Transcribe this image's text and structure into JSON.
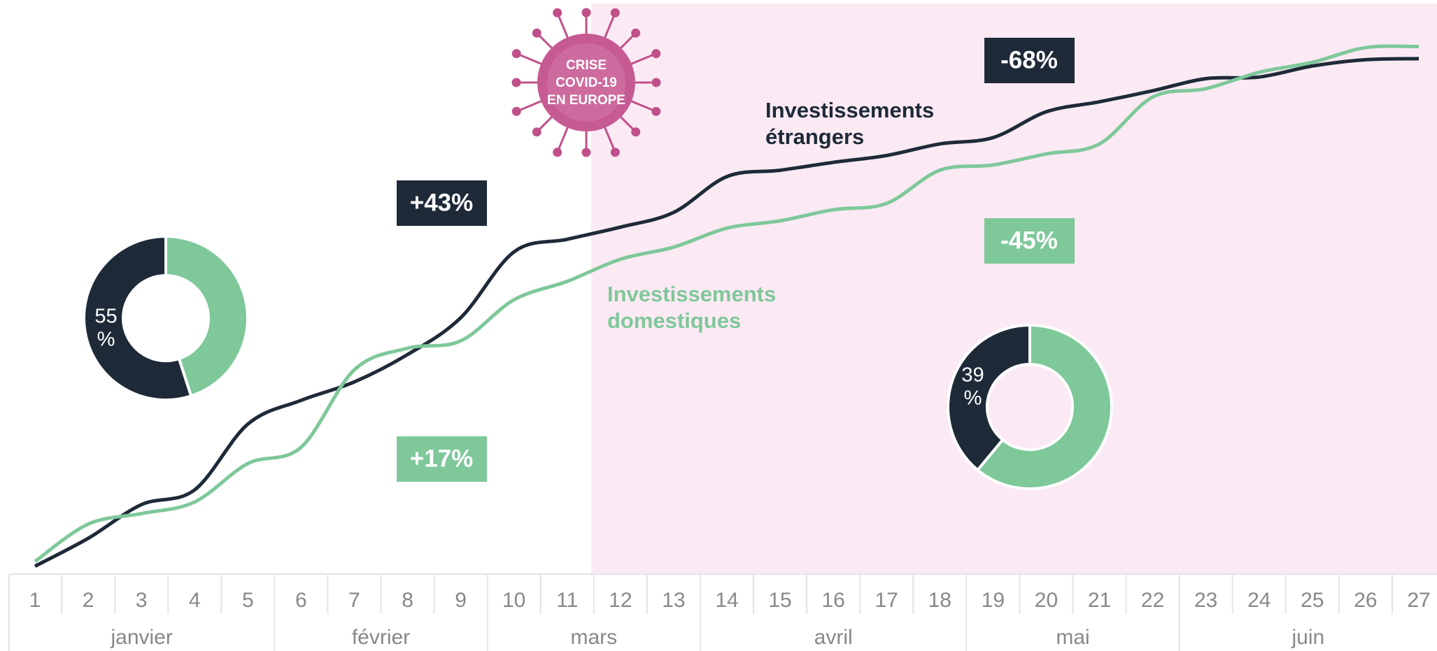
{
  "chart_data": [
    {
      "type": "line",
      "categories": [
        "1",
        "2",
        "3",
        "4",
        "5",
        "6",
        "7",
        "8",
        "9",
        "10",
        "11",
        "12",
        "13",
        "14",
        "15",
        "16",
        "17",
        "18",
        "19",
        "20",
        "21",
        "22",
        "23",
        "24",
        "25",
        "26",
        "27"
      ],
      "groups": [
        {
          "name": "janvier",
          "span": 5
        },
        {
          "name": "février",
          "span": 4
        },
        {
          "name": "mars",
          "span": 4
        },
        {
          "name": "avril",
          "span": 5
        },
        {
          "name": "mai",
          "span": 4
        },
        {
          "name": "juin",
          "span": 5
        }
      ],
      "ylim": [
        0,
        100
      ],
      "series": [
        {
          "name": "Investissements étrangers",
          "color": "#1e2a38",
          "values": [
            0.3,
            5.6,
            12,
            14.8,
            27.3,
            31.8,
            35.3,
            40.5,
            47.5,
            60,
            62.4,
            64.7,
            67.5,
            74.3,
            75.5,
            77,
            78.3,
            80.5,
            81.7,
            86.6,
            88.5,
            90.6,
            92.9,
            93.2,
            95.3,
            96.5,
            96.7
          ]
        },
        {
          "name": "Investissements domestiques",
          "color": "#7ec89a",
          "values": [
            1.2,
            8.3,
            10.3,
            12.5,
            19.8,
            22.9,
            37.6,
            41.7,
            43.1,
            50.9,
            54.4,
            58.6,
            60.9,
            64.5,
            65.9,
            68,
            69.2,
            75.5,
            76.5,
            78.6,
            80.5,
            89.4,
            91,
            94.1,
            96,
            98.8,
            99
          ]
        }
      ],
      "annotations": [
        "+43%",
        "+17%",
        "-68%",
        "-45%",
        "CRISE COVID-19 EN EUROPE"
      ]
    },
    {
      "type": "pie",
      "values": [
        45,
        55
      ],
      "colors": [
        "#7ec89a",
        "#1e2a38"
      ],
      "value_labels": [
        null,
        "55 %"
      ]
    },
    {
      "type": "pie",
      "values": [
        61,
        39
      ],
      "colors": [
        "#7ec89a",
        "#1e2a38"
      ],
      "value_labels": [
        null,
        "39 %"
      ]
    }
  ]
}
